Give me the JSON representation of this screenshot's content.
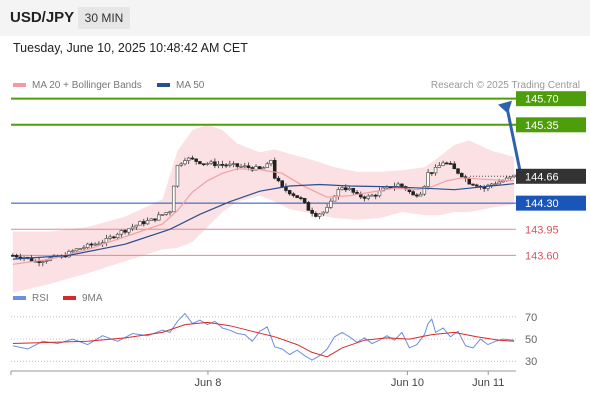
{
  "header": {
    "pair": "USD/JPY",
    "timeframe": "30 MIN"
  },
  "timestamp": "Tuesday, June 10, 2025 10:48:42 AM CET",
  "legend": {
    "ma20_label": "MA 20 + Bollinger Bands",
    "ma50_label": "MA 50",
    "rsi_label": "RSI",
    "ma9_label": "9MA"
  },
  "credit": "Research © 2025 Trading Central",
  "colors": {
    "green": "#4e9e0c",
    "blue": "#1a55b8",
    "red": "#e8858f",
    "current": "#333333",
    "ma20": "#f0a0a6",
    "ma50": "#2a4f8e",
    "band": "#fad4d7",
    "bull": "#555555",
    "bear": "#222222",
    "rsi": "#6e8fe0",
    "rsi_ma": "#d62a2a",
    "up_arrow": "#2e62ad"
  },
  "chart_data": [
    {
      "type": "candlestick",
      "title": "USD/JPY 30 MIN",
      "ylim": [
        143.27,
        145.87
      ],
      "x_tick_labels": [
        {
          "label": "Jun 8",
          "frac": 0.39
        },
        {
          "label": "Jun 10",
          "frac": 0.785
        },
        {
          "label": "Jun 11",
          "frac": 0.945
        }
      ],
      "levels": [
        {
          "value": 145.7,
          "label": "145.70",
          "color": "#4e9e0c",
          "kind": "resistance"
        },
        {
          "value": 145.35,
          "label": "145.35",
          "color": "#4e9e0c",
          "kind": "resistance"
        },
        {
          "value": 144.66,
          "label": "144.66",
          "color": "#333333",
          "kind": "current"
        },
        {
          "value": 144.3,
          "label": "144.30",
          "color": "#1a55b8",
          "kind": "pivot"
        },
        {
          "value": 143.95,
          "label": "143.95",
          "color": "#e8858f",
          "kind": "support"
        },
        {
          "value": 143.6,
          "label": "143.60",
          "color": "#e8858f",
          "kind": "support"
        }
      ],
      "close_path": [
        [
          0,
          143.6
        ],
        [
          3,
          143.58
        ],
        [
          6,
          143.52
        ],
        [
          9,
          143.55
        ],
        [
          13,
          143.58
        ],
        [
          17,
          143.68
        ],
        [
          21,
          143.74
        ],
        [
          25,
          143.8
        ],
        [
          28,
          143.9
        ],
        [
          31,
          143.96
        ],
        [
          34,
          144.03
        ],
        [
          37,
          144.07
        ],
        [
          40,
          144.15
        ],
        [
          42,
          144.2
        ],
        [
          43,
          144.55
        ],
        [
          44,
          144.8
        ],
        [
          45,
          144.85
        ],
        [
          46,
          144.9
        ],
        [
          48,
          144.88
        ],
        [
          51,
          144.84
        ],
        [
          55,
          144.82
        ],
        [
          59,
          144.8
        ],
        [
          63,
          144.78
        ],
        [
          66,
          144.75
        ],
        [
          68,
          144.8
        ],
        [
          69,
          144.88
        ],
        [
          70,
          144.65
        ],
        [
          72,
          144.5
        ],
        [
          74,
          144.45
        ],
        [
          77,
          144.35
        ],
        [
          79,
          144.22
        ],
        [
          81,
          144.15
        ],
        [
          83,
          144.18
        ],
        [
          84,
          144.22
        ],
        [
          85,
          144.3
        ],
        [
          86,
          144.42
        ],
        [
          88,
          144.52
        ],
        [
          90,
          144.48
        ],
        [
          92,
          144.4
        ],
        [
          95,
          144.38
        ],
        [
          97,
          144.42
        ],
        [
          99,
          144.48
        ],
        [
          101,
          144.52
        ],
        [
          103,
          144.55
        ],
        [
          105,
          144.5
        ],
        [
          107,
          144.4
        ],
        [
          109,
          144.45
        ],
        [
          110,
          144.55
        ],
        [
          111,
          144.7
        ],
        [
          113,
          144.75
        ],
        [
          115,
          144.85
        ],
        [
          117,
          144.8
        ],
        [
          118,
          144.75
        ],
        [
          120,
          144.68
        ],
        [
          122,
          144.58
        ],
        [
          124,
          144.55
        ],
        [
          126,
          144.5
        ],
        [
          128,
          144.56
        ],
        [
          131,
          144.6
        ],
        [
          133,
          144.64
        ],
        [
          134,
          144.66
        ]
      ],
      "ma20_path": [
        [
          0,
          143.48
        ],
        [
          10,
          143.55
        ],
        [
          20,
          143.68
        ],
        [
          30,
          143.85
        ],
        [
          40,
          144.02
        ],
        [
          44,
          144.2
        ],
        [
          48,
          144.45
        ],
        [
          52,
          144.6
        ],
        [
          56,
          144.7
        ],
        [
          60,
          144.76
        ],
        [
          66,
          144.75
        ],
        [
          72,
          144.7
        ],
        [
          78,
          144.52
        ],
        [
          84,
          144.38
        ],
        [
          90,
          144.4
        ],
        [
          96,
          144.45
        ],
        [
          102,
          144.5
        ],
        [
          108,
          144.48
        ],
        [
          112,
          144.52
        ],
        [
          116,
          144.6
        ],
        [
          120,
          144.64
        ],
        [
          126,
          144.62
        ],
        [
          134,
          144.6
        ]
      ],
      "ma50_path": [
        [
          0,
          143.55
        ],
        [
          15,
          143.6
        ],
        [
          30,
          143.75
        ],
        [
          42,
          143.95
        ],
        [
          50,
          144.15
        ],
        [
          58,
          144.32
        ],
        [
          66,
          144.46
        ],
        [
          74,
          144.53
        ],
        [
          82,
          144.55
        ],
        [
          90,
          144.53
        ],
        [
          100,
          144.52
        ],
        [
          110,
          144.5
        ],
        [
          118,
          144.48
        ],
        [
          126,
          144.52
        ],
        [
          134,
          144.56
        ]
      ],
      "band_upper": [
        [
          0,
          143.92
        ],
        [
          10,
          143.92
        ],
        [
          20,
          143.98
        ],
        [
          30,
          144.12
        ],
        [
          40,
          144.35
        ],
        [
          44,
          145.0
        ],
        [
          48,
          145.28
        ],
        [
          52,
          145.35
        ],
        [
          56,
          145.28
        ],
        [
          60,
          145.1
        ],
        [
          66,
          144.98
        ],
        [
          70,
          145.02
        ],
        [
          74,
          144.96
        ],
        [
          80,
          144.88
        ],
        [
          86,
          144.78
        ],
        [
          92,
          144.72
        ],
        [
          98,
          144.72
        ],
        [
          104,
          144.74
        ],
        [
          110,
          144.78
        ],
        [
          114,
          144.92
        ],
        [
          118,
          145.08
        ],
        [
          122,
          145.14
        ],
        [
          128,
          145.0
        ],
        [
          134,
          144.92
        ]
      ],
      "band_lower": [
        [
          0,
          143.1
        ],
        [
          10,
          143.22
        ],
        [
          20,
          143.36
        ],
        [
          30,
          143.52
        ],
        [
          40,
          143.68
        ],
        [
          44,
          143.7
        ],
        [
          48,
          143.78
        ],
        [
          52,
          143.98
        ],
        [
          56,
          144.18
        ],
        [
          60,
          144.32
        ],
        [
          66,
          144.4
        ],
        [
          70,
          144.32
        ],
        [
          74,
          144.22
        ],
        [
          80,
          144.16
        ],
        [
          86,
          144.1
        ],
        [
          92,
          144.08
        ],
        [
          98,
          144.1
        ],
        [
          104,
          144.18
        ],
        [
          110,
          144.14
        ],
        [
          114,
          144.14
        ],
        [
          118,
          144.18
        ],
        [
          122,
          144.18
        ],
        [
          128,
          144.24
        ],
        [
          134,
          144.28
        ]
      ]
    },
    {
      "type": "line",
      "title": "",
      "ylim": [
        23,
        78
      ],
      "y_ticks": [
        70,
        50,
        30
      ],
      "series": [
        {
          "name": "RSI",
          "points": [
            [
              0,
              44
            ],
            [
              4,
              41
            ],
            [
              8,
              48
            ],
            [
              12,
              46
            ],
            [
              16,
              50
            ],
            [
              20,
              45
            ],
            [
              24,
              53
            ],
            [
              28,
              48
            ],
            [
              32,
              55
            ],
            [
              36,
              53
            ],
            [
              40,
              58
            ],
            [
              42,
              56
            ],
            [
              44,
              66
            ],
            [
              46,
              73
            ],
            [
              48,
              64
            ],
            [
              50,
              67
            ],
            [
              52,
              63
            ],
            [
              54,
              66
            ],
            [
              56,
              60
            ],
            [
              58,
              58
            ],
            [
              60,
              55
            ],
            [
              62,
              54
            ],
            [
              64,
              48
            ],
            [
              66,
              57
            ],
            [
              68,
              61
            ],
            [
              70,
              43
            ],
            [
              72,
              41
            ],
            [
              74,
              36
            ],
            [
              76,
              40
            ],
            [
              78,
              35
            ],
            [
              80,
              31
            ],
            [
              82,
              35
            ],
            [
              84,
              41
            ],
            [
              86,
              52
            ],
            [
              88,
              56
            ],
            [
              90,
              52
            ],
            [
              92,
              47
            ],
            [
              94,
              51
            ],
            [
              96,
              46
            ],
            [
              98,
              49
            ],
            [
              100,
              53
            ],
            [
              102,
              49
            ],
            [
              104,
              56
            ],
            [
              106,
              42
            ],
            [
              108,
              45
            ],
            [
              110,
              54
            ],
            [
              111,
              64
            ],
            [
              112,
              68
            ],
            [
              113,
              56
            ],
            [
              115,
              60
            ],
            [
              117,
              52
            ],
            [
              119,
              57
            ],
            [
              121,
              44
            ],
            [
              123,
              42
            ],
            [
              125,
              50
            ],
            [
              127,
              45
            ],
            [
              129,
              48
            ],
            [
              131,
              50
            ],
            [
              134,
              49
            ]
          ]
        },
        {
          "name": "9MA",
          "points": [
            [
              0,
              46
            ],
            [
              10,
              47
            ],
            [
              20,
              48
            ],
            [
              30,
              51
            ],
            [
              40,
              56
            ],
            [
              46,
              63
            ],
            [
              52,
              65
            ],
            [
              58,
              62
            ],
            [
              64,
              57
            ],
            [
              70,
              52
            ],
            [
              76,
              45
            ],
            [
              80,
              38
            ],
            [
              84,
              34
            ],
            [
              88,
              42
            ],
            [
              94,
              49
            ],
            [
              100,
              51
            ],
            [
              106,
              50
            ],
            [
              112,
              54
            ],
            [
              118,
              56
            ],
            [
              124,
              52
            ],
            [
              130,
              49
            ],
            [
              134,
              48
            ]
          ]
        }
      ]
    }
  ]
}
